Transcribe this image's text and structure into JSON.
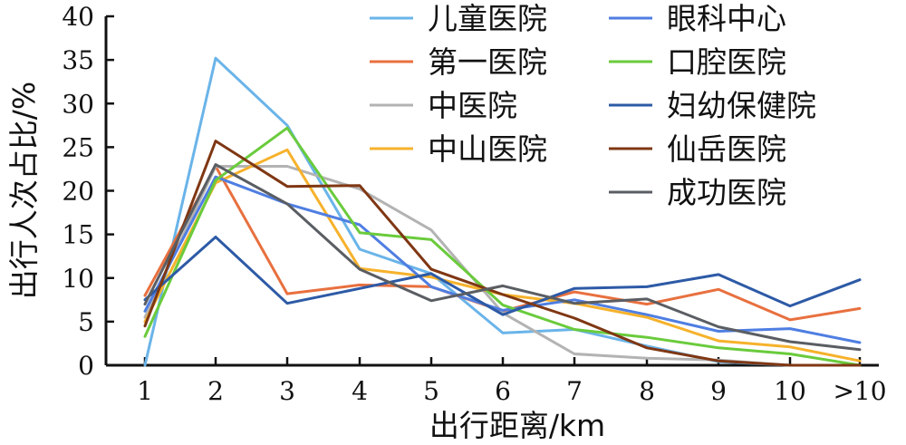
{
  "chart_data": {
    "type": "line",
    "xlabel": "出行距离/km",
    "ylabel": "出行人次占比/%",
    "categories": [
      "1",
      "2",
      "3",
      "4",
      "5",
      "6",
      "7",
      "8",
      "9",
      "10",
      ">10"
    ],
    "ylim": [
      0,
      40
    ],
    "yticks": [
      0,
      5,
      10,
      15,
      20,
      25,
      30,
      35,
      40
    ],
    "grid": false,
    "legend_placement": "top-right",
    "series": [
      {
        "name": "儿童医院",
        "color": "#6ab4e9",
        "values": [
          0,
          35.2,
          27.5,
          13.3,
          10.5,
          3.7,
          4.1,
          2.2,
          0.4,
          0,
          0
        ]
      },
      {
        "name": "第一医院",
        "color": "#e8703f",
        "values": [
          8.0,
          22.8,
          8.2,
          9.2,
          9.0,
          6.2,
          8.4,
          7.0,
          8.7,
          5.2,
          6.5
        ]
      },
      {
        "name": "中医院",
        "color": "#b3b3b3",
        "values": [
          5.5,
          22.8,
          22.8,
          20.2,
          15.5,
          6.0,
          1.3,
          0.8,
          0.6,
          0,
          0
        ]
      },
      {
        "name": "中山医院",
        "color": "#f6b22c",
        "values": [
          5.0,
          20.9,
          24.7,
          11.1,
          10.1,
          8.1,
          7.1,
          5.5,
          2.8,
          2.1,
          0.5
        ]
      },
      {
        "name": "眼科中心",
        "color": "#4f7ee2",
        "values": [
          6.2,
          21.6,
          18.5,
          16.1,
          9.0,
          6.3,
          7.5,
          5.8,
          3.9,
          4.2,
          2.6
        ]
      },
      {
        "name": "口腔医院",
        "color": "#6acb3c",
        "values": [
          3.3,
          21.2,
          27.2,
          15.2,
          14.4,
          6.9,
          4.1,
          3.2,
          2.0,
          1.3,
          0
        ]
      },
      {
        "name": "妇幼保健院",
        "color": "#2d5aa6",
        "values": [
          7.5,
          14.7,
          7.1,
          8.8,
          10.5,
          5.8,
          8.8,
          9.0,
          10.4,
          6.8,
          9.8
        ]
      },
      {
        "name": "仙岳医院",
        "color": "#7f3713",
        "values": [
          4.5,
          25.7,
          20.5,
          20.6,
          11.0,
          8.1,
          5.4,
          2.0,
          0.5,
          0,
          0
        ]
      },
      {
        "name": "成功医院",
        "color": "#5a5e63",
        "values": [
          7.0,
          23.0,
          18.5,
          11.0,
          7.4,
          9.1,
          7.1,
          7.6,
          4.4,
          2.7,
          1.8
        ]
      }
    ]
  }
}
